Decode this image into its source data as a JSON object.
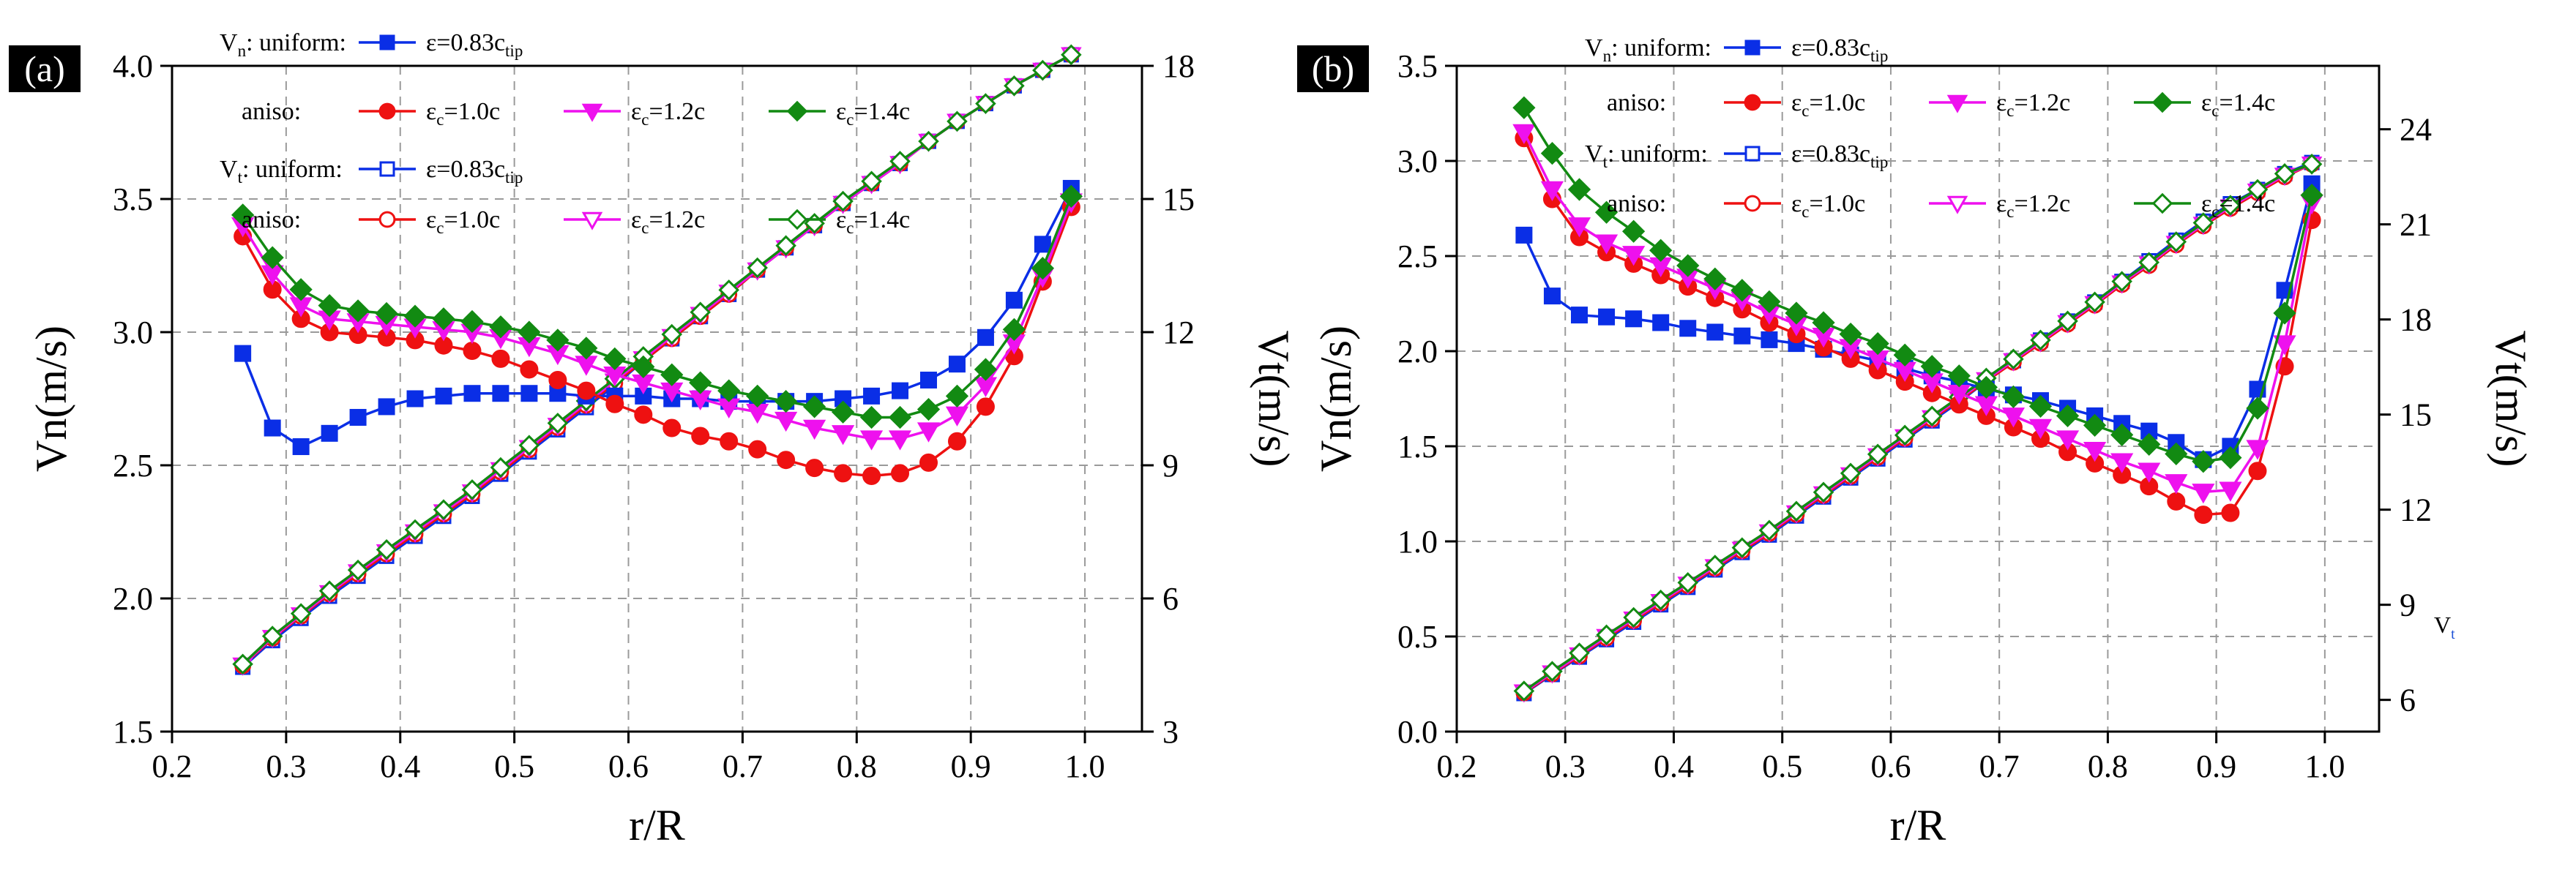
{
  "chart_data": [
    {
      "type": "line",
      "panel": "(a)",
      "xlabel": "r/R",
      "ylabel_left": "Vn(m/s)",
      "ylabel_right": "Vt(m/s)",
      "xlim": [
        0.2,
        1.05
      ],
      "ylim_left": [
        1.5,
        4.0
      ],
      "ylim_right": [
        3,
        18
      ],
      "xticks": [
        "0.2",
        "0.3",
        "0.4",
        "0.5",
        "0.6",
        "0.7",
        "0.8",
        "0.9",
        "1.0"
      ],
      "yticks_left": [
        "1.5",
        "2.0",
        "2.5",
        "3.0",
        "3.5",
        "4.0"
      ],
      "yticks_right": [
        "3",
        "6",
        "9",
        "12",
        "15",
        "18"
      ],
      "x": [
        0.262,
        0.288,
        0.313,
        0.338,
        0.363,
        0.388,
        0.413,
        0.438,
        0.463,
        0.488,
        0.513,
        0.538,
        0.563,
        0.588,
        0.613,
        0.638,
        0.663,
        0.688,
        0.713,
        0.738,
        0.763,
        0.788,
        0.813,
        0.838,
        0.863,
        0.888,
        0.913,
        0.938,
        0.963,
        0.988
      ],
      "legend": {
        "vn_label": "V",
        "vn_sub": "n",
        "vt_label": "V",
        "vt_sub": "t",
        "uniform": ": uniform:",
        "aniso": "aniso:",
        "uniform_series": "ε=0.83c",
        "uniform_sub": "tip",
        "eps": "ε",
        "eps_sub": "c",
        "aniso_series": [
          "=1.0c",
          "=1.2c",
          "=1.4c"
        ]
      },
      "series": [
        {
          "name": "Vn uniform ε=0.83c_tip",
          "axis": "left",
          "marker": "square",
          "filled": true,
          "color": "#0a2ee6",
          "values": [
            2.92,
            2.64,
            2.57,
            2.62,
            2.68,
            2.72,
            2.75,
            2.76,
            2.77,
            2.77,
            2.77,
            2.77,
            2.76,
            2.76,
            2.76,
            2.75,
            2.75,
            2.74,
            2.74,
            2.74,
            2.74,
            2.75,
            2.76,
            2.78,
            2.82,
            2.88,
            2.98,
            3.12,
            3.33,
            3.54
          ]
        },
        {
          "name": "Vn aniso ε_c=1.0c",
          "axis": "left",
          "marker": "circle",
          "filled": true,
          "color": "#ee1111",
          "values": [
            3.36,
            3.16,
            3.05,
            3.0,
            2.99,
            2.98,
            2.97,
            2.95,
            2.93,
            2.9,
            2.86,
            2.82,
            2.78,
            2.73,
            2.69,
            2.64,
            2.61,
            2.59,
            2.56,
            2.52,
            2.49,
            2.47,
            2.46,
            2.47,
            2.51,
            2.59,
            2.72,
            2.91,
            3.19,
            3.47
          ]
        },
        {
          "name": "Vn aniso ε_c=1.2c",
          "axis": "left",
          "marker": "triangle-down",
          "filled": true,
          "color": "#ee11ee",
          "values": [
            3.4,
            3.22,
            3.1,
            3.05,
            3.04,
            3.03,
            3.02,
            3.01,
            3.0,
            2.98,
            2.95,
            2.92,
            2.88,
            2.84,
            2.81,
            2.78,
            2.75,
            2.72,
            2.7,
            2.67,
            2.64,
            2.62,
            2.6,
            2.6,
            2.63,
            2.69,
            2.8,
            2.96,
            3.21,
            3.49
          ]
        },
        {
          "name": "Vn aniso ε_c=1.4c",
          "axis": "left",
          "marker": "diamond",
          "filled": true,
          "color": "#128a12",
          "values": [
            3.44,
            3.28,
            3.16,
            3.1,
            3.08,
            3.07,
            3.06,
            3.05,
            3.04,
            3.02,
            3.0,
            2.97,
            2.94,
            2.9,
            2.87,
            2.84,
            2.81,
            2.78,
            2.76,
            2.74,
            2.72,
            2.7,
            2.68,
            2.68,
            2.71,
            2.76,
            2.86,
            3.01,
            3.24,
            3.51
          ]
        },
        {
          "name": "Vt uniform ε=0.83c_tip",
          "axis": "right",
          "marker": "square",
          "filled": false,
          "color": "#0a2ee6",
          "values": [
            4.45,
            5.05,
            5.55,
            6.05,
            6.5,
            6.95,
            7.4,
            7.85,
            8.3,
            8.8,
            9.3,
            9.8,
            10.3,
            10.8,
            11.35,
            11.85,
            12.35,
            12.85,
            13.4,
            13.9,
            14.4,
            14.9,
            15.35,
            15.8,
            16.3,
            16.75,
            17.15,
            17.55,
            17.9,
            18.25
          ]
        },
        {
          "name": "Vt aniso ε_c=1.0c",
          "axis": "right",
          "marker": "circle",
          "filled": false,
          "color": "#ee1111",
          "values": [
            4.48,
            5.1,
            5.6,
            6.1,
            6.55,
            7.0,
            7.45,
            7.9,
            8.35,
            8.85,
            9.35,
            9.85,
            10.35,
            10.85,
            11.35,
            11.85,
            12.35,
            12.85,
            13.4,
            13.9,
            14.4,
            14.9,
            15.35,
            15.8,
            16.3,
            16.75,
            17.15,
            17.55,
            17.9,
            18.25
          ]
        },
        {
          "name": "Vt aniso ε_c=1.2c",
          "axis": "right",
          "marker": "triangle-down",
          "filled": false,
          "color": "#ee11ee",
          "values": [
            4.5,
            5.12,
            5.63,
            6.13,
            6.6,
            7.05,
            7.5,
            7.95,
            8.4,
            8.9,
            9.4,
            9.9,
            10.4,
            10.9,
            11.4,
            11.9,
            12.4,
            12.9,
            13.4,
            13.9,
            14.4,
            14.9,
            15.35,
            15.8,
            16.3,
            16.75,
            17.15,
            17.55,
            17.9,
            18.25
          ]
        },
        {
          "name": "Vt aniso ε_c=1.4c",
          "axis": "right",
          "marker": "diamond",
          "filled": false,
          "color": "#128a12",
          "values": [
            4.52,
            5.15,
            5.66,
            6.17,
            6.64,
            7.1,
            7.55,
            8.0,
            8.45,
            8.95,
            9.45,
            9.95,
            10.45,
            10.95,
            11.45,
            11.95,
            12.45,
            12.95,
            13.45,
            13.95,
            14.45,
            14.95,
            15.4,
            15.85,
            16.3,
            16.75,
            17.15,
            17.55,
            17.9,
            18.25
          ]
        }
      ]
    },
    {
      "type": "line",
      "panel": "(b)",
      "xlabel": "r/R",
      "ylabel_left": "Vn(m/s)",
      "ylabel_right": "Vt(m/s)",
      "xlim": [
        0.2,
        1.05
      ],
      "ylim_left": [
        0.0,
        3.5
      ],
      "ylim_right": [
        5,
        26
      ],
      "xticks": [
        "0.2",
        "0.3",
        "0.4",
        "0.5",
        "0.6",
        "0.7",
        "0.8",
        "0.9",
        "1.0"
      ],
      "yticks_left": [
        "0.0",
        "0.5",
        "1.0",
        "1.5",
        "2.0",
        "2.5",
        "3.0",
        "3.5"
      ],
      "yticks_right": [
        "6",
        "9",
        "12",
        "15",
        "18",
        "21",
        "24"
      ],
      "x": [
        0.262,
        0.288,
        0.313,
        0.338,
        0.363,
        0.388,
        0.413,
        0.438,
        0.463,
        0.488,
        0.513,
        0.538,
        0.563,
        0.588,
        0.613,
        0.638,
        0.663,
        0.688,
        0.713,
        0.738,
        0.763,
        0.788,
        0.813,
        0.838,
        0.863,
        0.888,
        0.913,
        0.938,
        0.963,
        0.988
      ],
      "stray_label": "V",
      "stray_sub": "t",
      "legend": {
        "vn_label": "V",
        "vn_sub": "n",
        "vt_label": "V",
        "vt_sub": "t",
        "uniform": ": uniform:",
        "aniso": "aniso:",
        "uniform_series": "ε=0.83c",
        "uniform_sub": "tip",
        "eps": "ε",
        "eps_sub": "c",
        "aniso_series": [
          "=1.0c",
          "=1.2c",
          "=1.4c"
        ]
      },
      "series": [
        {
          "name": "Vn uniform ε=0.83c_tip",
          "axis": "left",
          "marker": "square",
          "filled": true,
          "color": "#0a2ee6",
          "values": [
            2.61,
            2.29,
            2.19,
            2.18,
            2.17,
            2.15,
            2.12,
            2.1,
            2.08,
            2.06,
            2.04,
            2.01,
            1.98,
            1.95,
            1.91,
            1.87,
            1.84,
            1.8,
            1.77,
            1.74,
            1.7,
            1.66,
            1.62,
            1.58,
            1.52,
            1.43,
            1.5,
            1.8,
            2.32,
            2.88
          ]
        },
        {
          "name": "Vn aniso ε_c=1.0c",
          "axis": "left",
          "marker": "circle",
          "filled": true,
          "color": "#ee1111",
          "values": [
            3.12,
            2.8,
            2.6,
            2.52,
            2.46,
            2.4,
            2.34,
            2.28,
            2.22,
            2.15,
            2.09,
            2.02,
            1.96,
            1.9,
            1.84,
            1.78,
            1.72,
            1.66,
            1.6,
            1.54,
            1.47,
            1.41,
            1.35,
            1.29,
            1.21,
            1.14,
            1.15,
            1.37,
            1.92,
            2.69
          ]
        },
        {
          "name": "Vn aniso ε_c=1.2c",
          "axis": "left",
          "marker": "triangle-down",
          "filled": true,
          "color": "#ee11ee",
          "values": [
            3.15,
            2.85,
            2.66,
            2.57,
            2.51,
            2.45,
            2.39,
            2.33,
            2.27,
            2.2,
            2.14,
            2.08,
            2.02,
            1.96,
            1.9,
            1.84,
            1.78,
            1.72,
            1.66,
            1.6,
            1.54,
            1.48,
            1.42,
            1.37,
            1.31,
            1.26,
            1.27,
            1.49,
            2.04,
            2.78
          ]
        },
        {
          "name": "Vn aniso ε_c=1.4c",
          "axis": "left",
          "marker": "diamond",
          "filled": true,
          "color": "#128a12",
          "values": [
            3.28,
            3.04,
            2.85,
            2.73,
            2.63,
            2.53,
            2.45,
            2.38,
            2.32,
            2.26,
            2.2,
            2.15,
            2.09,
            2.04,
            1.98,
            1.92,
            1.87,
            1.81,
            1.76,
            1.71,
            1.66,
            1.61,
            1.56,
            1.51,
            1.46,
            1.42,
            1.44,
            1.7,
            2.2,
            2.82
          ]
        },
        {
          "name": "Vt uniform ε=0.83c_tip",
          "axis": "right",
          "marker": "square",
          "filled": false,
          "color": "#0a2ee6",
          "values": [
            6.2,
            6.8,
            7.35,
            7.9,
            8.45,
            9.0,
            9.55,
            10.1,
            10.65,
            11.2,
            11.8,
            12.4,
            13.0,
            13.6,
            14.2,
            14.8,
            15.4,
            16.05,
            16.7,
            17.35,
            17.95,
            18.55,
            19.2,
            19.85,
            20.5,
            21.1,
            21.65,
            22.1,
            22.6,
            22.95
          ]
        },
        {
          "name": "Vt aniso ε_c=1.0c",
          "axis": "right",
          "marker": "circle",
          "filled": false,
          "color": "#ee1111",
          "values": [
            6.22,
            6.82,
            7.38,
            7.95,
            8.5,
            9.05,
            9.6,
            10.15,
            10.7,
            11.25,
            11.85,
            12.45,
            13.05,
            13.65,
            14.25,
            14.85,
            15.45,
            16.05,
            16.65,
            17.25,
            17.85,
            18.45,
            19.1,
            19.7,
            20.35,
            20.95,
            21.5,
            22.0,
            22.5,
            22.9
          ]
        },
        {
          "name": "Vt aniso ε_c=1.2c",
          "axis": "right",
          "marker": "triangle-down",
          "filled": false,
          "color": "#ee11ee",
          "values": [
            6.25,
            6.85,
            7.42,
            8.0,
            8.55,
            9.1,
            9.65,
            10.2,
            10.75,
            11.3,
            11.9,
            12.5,
            13.1,
            13.7,
            14.3,
            14.9,
            15.5,
            16.1,
            16.7,
            17.3,
            17.9,
            18.5,
            19.15,
            19.75,
            20.4,
            21.0,
            21.55,
            22.05,
            22.55,
            22.9
          ]
        },
        {
          "name": "Vt aniso ε_c=1.4c",
          "axis": "right",
          "marker": "diamond",
          "filled": false,
          "color": "#128a12",
          "values": [
            6.28,
            6.9,
            7.48,
            8.05,
            8.6,
            9.15,
            9.7,
            10.25,
            10.8,
            11.35,
            11.95,
            12.55,
            13.15,
            13.75,
            14.35,
            14.95,
            15.55,
            16.15,
            16.75,
            17.35,
            17.95,
            18.55,
            19.2,
            19.8,
            20.45,
            21.05,
            21.6,
            22.1,
            22.6,
            22.9
          ]
        }
      ]
    }
  ]
}
